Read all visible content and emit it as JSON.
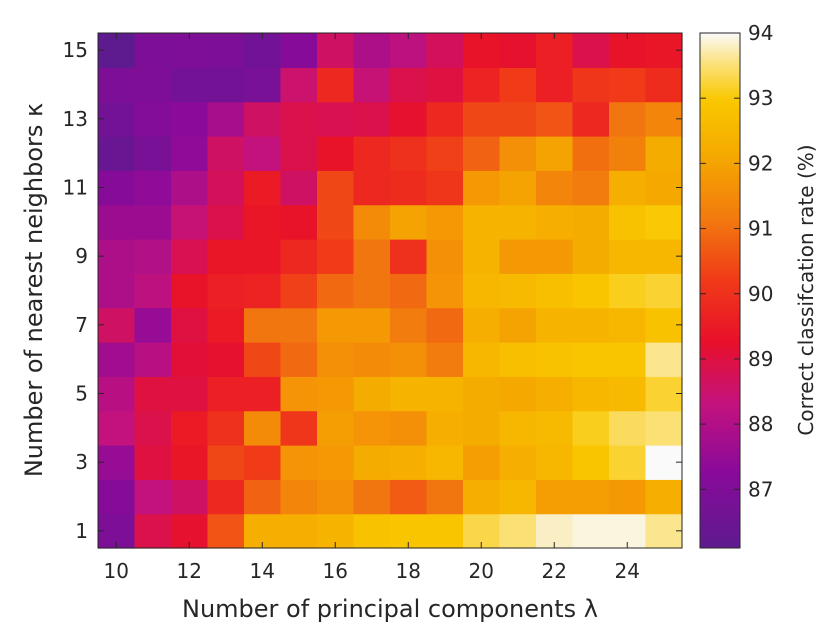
{
  "chart_data": {
    "type": "heatmap",
    "title": "",
    "xlabel": "Number of principal components λ",
    "ylabel": "Number of nearest neighbors κ",
    "x": [
      10,
      11,
      12,
      13,
      14,
      15,
      16,
      17,
      18,
      19,
      20,
      21,
      22,
      23,
      24,
      25
    ],
    "y": [
      1,
      2,
      3,
      4,
      5,
      6,
      7,
      8,
      9,
      10,
      11,
      12,
      13,
      14,
      15
    ],
    "x_ticks": [
      "10",
      "12",
      "14",
      "16",
      "18",
      "20",
      "22",
      "24"
    ],
    "y_ticks": [
      "1",
      "3",
      "5",
      "7",
      "9",
      "11",
      "13",
      "15"
    ],
    "colorbar": {
      "label": "Correct classifcation rate (%)",
      "min": 86.1,
      "max": 94.0,
      "ticks": [
        "87",
        "88",
        "89",
        "90",
        "91",
        "92",
        "93",
        "94"
      ],
      "colormap": "plasma-like (purple → magenta → red → orange → yellow → white)"
    },
    "z": [
      [
        86.9,
        88.9,
        89.2,
        90.6,
        92.3,
        92.3,
        92.4,
        92.8,
        92.9,
        92.9,
        93.3,
        93.5,
        93.8,
        93.9,
        93.9,
        93.6
      ],
      [
        87.2,
        88.3,
        88.6,
        89.8,
        90.8,
        91.4,
        91.6,
        91.1,
        90.7,
        91.1,
        92.3,
        92.5,
        91.9,
        91.9,
        91.8,
        92.3
      ],
      [
        87.5,
        89.0,
        89.4,
        90.4,
        90.2,
        91.7,
        91.8,
        92.2,
        92.3,
        92.5,
        91.9,
        92.3,
        92.5,
        92.9,
        93.2,
        94.0
      ],
      [
        88.3,
        88.9,
        89.5,
        90.0,
        91.5,
        90.1,
        91.9,
        91.7,
        91.6,
        92.3,
        92.2,
        92.5,
        92.6,
        93.1,
        93.4,
        93.5
      ],
      [
        88.1,
        89.0,
        89.0,
        89.6,
        89.6,
        91.7,
        91.8,
        92.2,
        92.4,
        92.4,
        92.2,
        92.1,
        92.3,
        92.5,
        92.6,
        93.2
      ],
      [
        87.7,
        88.1,
        89.1,
        89.2,
        90.4,
        90.9,
        91.6,
        91.5,
        91.6,
        91.2,
        92.5,
        92.7,
        92.8,
        92.9,
        92.9,
        93.6
      ],
      [
        88.6,
        87.5,
        89.0,
        89.5,
        91.1,
        91.1,
        91.8,
        91.8,
        91.2,
        90.9,
        92.3,
        92.0,
        92.4,
        92.4,
        92.5,
        92.8
      ],
      [
        87.9,
        88.2,
        89.3,
        89.6,
        89.7,
        90.3,
        90.9,
        91.1,
        90.9,
        91.7,
        92.5,
        92.6,
        92.7,
        92.9,
        93.1,
        93.2
      ],
      [
        87.9,
        88.0,
        88.8,
        89.4,
        89.4,
        89.8,
        90.2,
        91.1,
        90.0,
        91.6,
        92.4,
        91.8,
        91.8,
        92.2,
        92.5,
        92.5
      ],
      [
        87.6,
        87.6,
        88.4,
        88.9,
        89.4,
        89.3,
        90.4,
        91.5,
        92.0,
        91.8,
        92.4,
        92.4,
        92.3,
        92.2,
        92.8,
        93.0
      ],
      [
        87.2,
        87.4,
        87.9,
        88.7,
        89.5,
        88.6,
        90.4,
        89.8,
        89.9,
        90.1,
        91.8,
        92.0,
        91.4,
        91.2,
        92.3,
        92.1
      ],
      [
        86.4,
        86.8,
        87.4,
        88.6,
        88.3,
        88.9,
        89.3,
        89.8,
        90.0,
        90.3,
        90.8,
        91.6,
        92.0,
        91.0,
        91.3,
        92.2
      ],
      [
        86.7,
        87.1,
        87.3,
        87.8,
        88.6,
        88.9,
        88.8,
        88.9,
        89.2,
        89.8,
        90.4,
        90.4,
        90.6,
        89.8,
        91.1,
        91.4
      ],
      [
        86.9,
        87.0,
        86.7,
        86.7,
        86.8,
        88.5,
        89.8,
        88.4,
        88.9,
        89.0,
        89.7,
        90.2,
        89.6,
        90.1,
        90.2,
        89.9
      ],
      [
        86.1,
        86.9,
        87.0,
        86.9,
        86.6,
        87.2,
        88.6,
        87.9,
        88.2,
        88.7,
        89.3,
        89.2,
        89.6,
        88.9,
        89.3,
        89.4
      ]
    ]
  }
}
